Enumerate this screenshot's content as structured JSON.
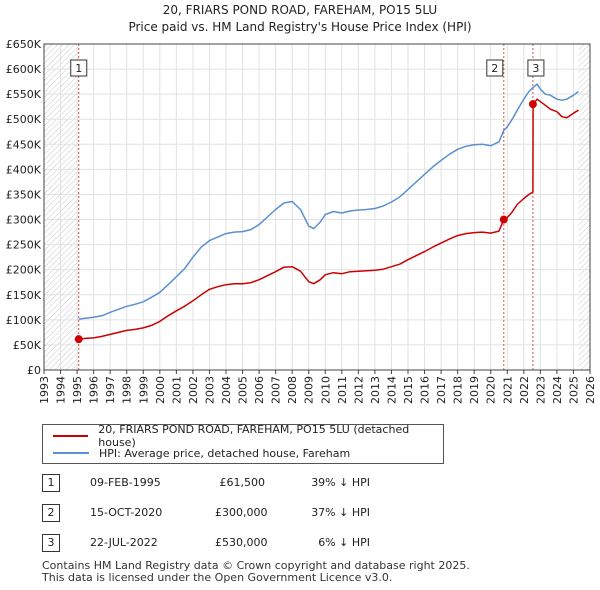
{
  "chart_data": {
    "type": "line",
    "title": "20, FRIARS POND ROAD, FAREHAM, PO15 5LU",
    "subtitle": "Price paid vs. HM Land Registry's House Price Index (HPI)",
    "xlabel": "",
    "ylabel": "",
    "xlim": [
      1993,
      2026
    ],
    "ylim": [
      0,
      650000
    ],
    "x_ticks": [
      "1993",
      "1994",
      "1995",
      "1996",
      "1997",
      "1998",
      "1999",
      "2000",
      "2001",
      "2002",
      "2003",
      "2004",
      "2005",
      "2006",
      "2007",
      "2008",
      "2009",
      "2010",
      "2011",
      "2012",
      "2013",
      "2014",
      "2015",
      "2016",
      "2017",
      "2018",
      "2019",
      "2020",
      "2021",
      "2022",
      "2023",
      "2024",
      "2025",
      "2026"
    ],
    "y_ticks": [
      {
        "value": 0,
        "label": "£0"
      },
      {
        "value": 50000,
        "label": "£50K"
      },
      {
        "value": 100000,
        "label": "£100K"
      },
      {
        "value": 150000,
        "label": "£150K"
      },
      {
        "value": 200000,
        "label": "£200K"
      },
      {
        "value": 250000,
        "label": "£250K"
      },
      {
        "value": 300000,
        "label": "£300K"
      },
      {
        "value": 350000,
        "label": "£350K"
      },
      {
        "value": 400000,
        "label": "£400K"
      },
      {
        "value": 450000,
        "label": "£450K"
      },
      {
        "value": 500000,
        "label": "£500K"
      },
      {
        "value": 550000,
        "label": "£550K"
      },
      {
        "value": 600000,
        "label": "£600K"
      },
      {
        "value": 650000,
        "label": "£650K"
      }
    ],
    "series": [
      {
        "name": "20, FRIARS POND ROAD, FAREHAM, PO15 5LU (detached house)",
        "color": "#cc0000",
        "x": [
          1995.1,
          1995.5,
          1996.0,
          1996.5,
          1997.0,
          1997.5,
          1998.0,
          1998.5,
          1999.0,
          1999.5,
          2000.0,
          2000.5,
          2001.0,
          2001.5,
          2002.0,
          2002.5,
          2003.0,
          2003.5,
          2004.0,
          2004.5,
          2005.0,
          2005.5,
          2006.0,
          2006.5,
          2007.0,
          2007.5,
          2008.0,
          2008.5,
          2009.0,
          2009.3,
          2009.7,
          2010.0,
          2010.5,
          2011.0,
          2011.5,
          2012.0,
          2012.5,
          2013.0,
          2013.5,
          2014.0,
          2014.5,
          2015.0,
          2015.5,
          2016.0,
          2016.5,
          2017.0,
          2017.5,
          2018.0,
          2018.5,
          2019.0,
          2019.5,
          2020.0,
          2020.5,
          2020.79,
          2021.0,
          2021.3,
          2021.6,
          2022.0,
          2022.3,
          2022.55,
          2022.56,
          2022.8,
          2023.0,
          2023.3,
          2023.6,
          2024.0,
          2024.3,
          2024.6,
          2025.0,
          2025.3
        ],
        "values": [
          61500,
          63000,
          64000,
          67000,
          71000,
          75000,
          79000,
          81000,
          84000,
          89000,
          97000,
          108000,
          118000,
          127000,
          138000,
          150000,
          161000,
          166000,
          170000,
          172000,
          172000,
          174000,
          180000,
          188000,
          196000,
          205000,
          206000,
          197000,
          176000,
          172000,
          180000,
          190000,
          194000,
          192000,
          196000,
          197000,
          198000,
          199000,
          201000,
          206000,
          211000,
          220000,
          228000,
          236000,
          245000,
          253000,
          261000,
          268000,
          272000,
          274000,
          275000,
          273000,
          277000,
          300000,
          304000,
          315000,
          330000,
          342000,
          350000,
          355000,
          530000,
          540000,
          535000,
          528000,
          520000,
          515000,
          505000,
          503000,
          512000,
          518000
        ]
      },
      {
        "name": "HPI: Average price, detached house, Fareham",
        "color": "#5b8fd0",
        "x": [
          1995.1,
          1995.5,
          1996.0,
          1996.5,
          1997.0,
          1997.5,
          1998.0,
          1998.5,
          1999.0,
          1999.5,
          2000.0,
          2000.5,
          2001.0,
          2001.5,
          2002.0,
          2002.5,
          2003.0,
          2003.5,
          2004.0,
          2004.5,
          2005.0,
          2005.5,
          2006.0,
          2006.5,
          2007.0,
          2007.5,
          2008.0,
          2008.5,
          2009.0,
          2009.3,
          2009.7,
          2010.0,
          2010.5,
          2011.0,
          2011.5,
          2012.0,
          2012.5,
          2013.0,
          2013.5,
          2014.0,
          2014.5,
          2015.0,
          2015.5,
          2016.0,
          2016.5,
          2017.0,
          2017.5,
          2018.0,
          2018.5,
          2019.0,
          2019.5,
          2020.0,
          2020.5,
          2020.79,
          2021.0,
          2021.3,
          2021.6,
          2022.0,
          2022.3,
          2022.55,
          2022.8,
          2023.0,
          2023.3,
          2023.6,
          2024.0,
          2024.3,
          2024.6,
          2025.0,
          2025.3
        ],
        "values": [
          101000,
          103000,
          105000,
          108000,
          115000,
          121000,
          127000,
          131000,
          136000,
          145000,
          155000,
          170000,
          186000,
          202000,
          225000,
          245000,
          258000,
          265000,
          272000,
          275000,
          276000,
          280000,
          290000,
          305000,
          320000,
          333000,
          336000,
          320000,
          287000,
          282000,
          295000,
          310000,
          316000,
          313000,
          317000,
          319000,
          320000,
          322000,
          327000,
          335000,
          345000,
          360000,
          375000,
          390000,
          405000,
          418000,
          430000,
          440000,
          446000,
          449000,
          450000,
          447000,
          455000,
          478000,
          485000,
          500000,
          518000,
          540000,
          555000,
          563000,
          570000,
          560000,
          550000,
          548000,
          540000,
          538000,
          540000,
          548000,
          555000
        ]
      }
    ],
    "sales": [
      {
        "label": "1",
        "x": 1995.1,
        "y": 61500
      },
      {
        "label": "2",
        "x": 2020.79,
        "y": 300000
      },
      {
        "label": "3",
        "x": 2022.55,
        "y": 530000
      }
    ],
    "hatched_regions": [
      [
        1993,
        1995.1
      ],
      [
        2025.3,
        2026
      ]
    ]
  },
  "legend": {
    "red_label": "20, FRIARS POND ROAD, FAREHAM, PO15 5LU (detached house)",
    "blue_label": "HPI: Average price, detached house, Fareham"
  },
  "sales_table": [
    {
      "num": "1",
      "date": "09-FEB-1995",
      "price": "£61,500",
      "hpi": "39% ↓ HPI"
    },
    {
      "num": "2",
      "date": "15-OCT-2020",
      "price": "£300,000",
      "hpi": "37% ↓ HPI"
    },
    {
      "num": "3",
      "date": "22-JUL-2022",
      "price": "£530,000",
      "hpi": "6% ↓ HPI"
    }
  ],
  "footer": {
    "line1": "Contains HM Land Registry data © Crown copyright and database right 2025.",
    "line2": "This data is licensed under the Open Government Licence v3.0."
  }
}
